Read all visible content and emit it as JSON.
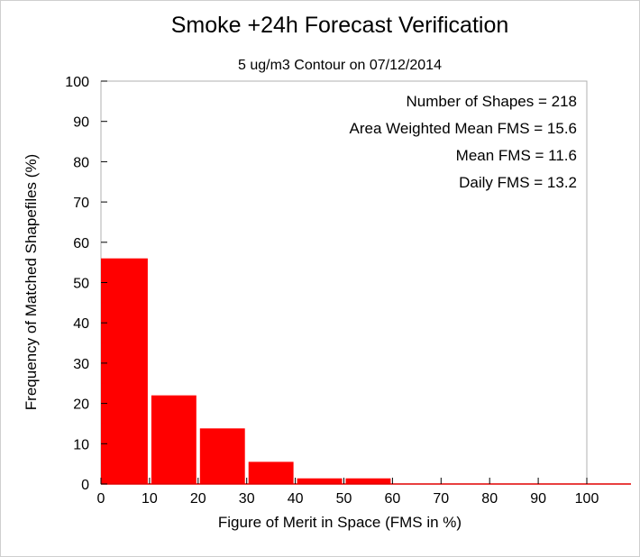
{
  "chart_data": {
    "type": "bar",
    "title": "Smoke +24h Forecast Verification",
    "subtitle": "5 ug/m3 Contour on 07/12/2014",
    "xlabel": "Figure of Merit in Space (FMS in %)",
    "ylabel": "Frequency of Matched Shapefiles (%)",
    "xlim": [
      0,
      100
    ],
    "ylim": [
      0,
      100
    ],
    "xticks": [
      "0",
      "10",
      "20",
      "30",
      "40",
      "50",
      "60",
      "70",
      "80",
      "90",
      "100"
    ],
    "yticks": [
      "0",
      "10",
      "20",
      "30",
      "40",
      "50",
      "60",
      "70",
      "80",
      "90",
      "100"
    ],
    "bins": [
      {
        "x0": 0,
        "x1": 10,
        "value": 56
      },
      {
        "x0": 10,
        "x1": 20,
        "value": 22
      },
      {
        "x0": 20,
        "x1": 30,
        "value": 13.8
      },
      {
        "x0": 30,
        "x1": 40,
        "value": 5.5
      },
      {
        "x0": 40,
        "x1": 50,
        "value": 1.4
      },
      {
        "x0": 50,
        "x1": 60,
        "value": 1.4
      },
      {
        "x0": 60,
        "x1": 70,
        "value": 0
      },
      {
        "x0": 70,
        "x1": 80,
        "value": 0
      },
      {
        "x0": 80,
        "x1": 90,
        "value": 0
      },
      {
        "x0": 90,
        "x1": 100,
        "value": 0
      }
    ],
    "annotations": [
      "Number of Shapes = 218",
      "Area Weighted Mean FMS = 15.6",
      "Mean FMS = 11.6",
      "Daily FMS = 13.2"
    ],
    "bar_color": "#ff0000",
    "grid": false,
    "legend": "none"
  }
}
